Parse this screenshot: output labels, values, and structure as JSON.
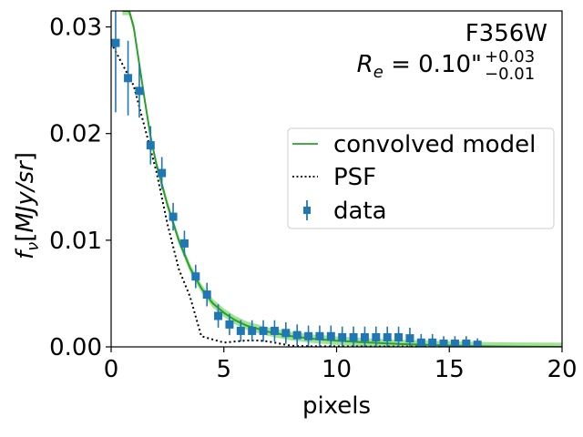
{
  "chart_data": {
    "type": "scatter",
    "xlabel": "pixels",
    "ylabel": "f_ν [MJy/sr]",
    "xlim": [
      0,
      20
    ],
    "ylim": [
      0,
      0.0315
    ],
    "x_ticks": [
      0,
      5,
      10,
      15,
      20
    ],
    "y_ticks": [
      0.0,
      0.01,
      0.02,
      0.03
    ],
    "x_tick_labels": [
      "0",
      "5",
      "10",
      "15",
      "20"
    ],
    "y_tick_labels": [
      "0.00",
      "0.01",
      "0.02",
      "0.03"
    ],
    "annotation": {
      "filter": "F356W",
      "re_label": "R_e = 0.10\"",
      "re_plus": "+0.03",
      "re_minus": "−0.01"
    },
    "legend": {
      "placement": "center-right",
      "entries": [
        "convolved model",
        "PSF",
        "data"
      ]
    },
    "colors": {
      "model": "#2ca02c",
      "model_band": "#98df8a",
      "psf": "#000000",
      "data": "#1f77b4"
    },
    "series": [
      {
        "name": "data",
        "x": [
          0.2,
          0.75,
          1.25,
          1.75,
          2.25,
          2.75,
          3.25,
          3.75,
          4.25,
          4.75,
          5.25,
          5.75,
          6.25,
          6.75,
          7.25,
          7.75,
          8.25,
          8.75,
          9.25,
          9.75,
          10.25,
          10.75,
          11.25,
          11.75,
          12.25,
          12.75,
          13.25,
          13.75,
          14.25,
          14.75,
          15.25,
          15.75,
          16.25
        ],
        "y": [
          0.0285,
          0.0252,
          0.024,
          0.0189,
          0.0163,
          0.0122,
          0.0097,
          0.0066,
          0.0049,
          0.0029,
          0.0021,
          0.0015,
          0.0015,
          0.0015,
          0.0015,
          0.0013,
          0.0011,
          0.001,
          0.001,
          0.001,
          0.0009,
          0.0009,
          0.0009,
          0.0009,
          0.0009,
          0.0009,
          0.0008,
          0.0004,
          0.0004,
          0.0003,
          0.0003,
          0.0003,
          0.0002
        ],
        "yerr": [
          0.0065,
          0.0035,
          0.0025,
          0.0018,
          0.0015,
          0.0013,
          0.0012,
          0.0011,
          0.0011,
          0.0011,
          0.001,
          0.001,
          0.001,
          0.001,
          0.001,
          0.001,
          0.001,
          0.001,
          0.001,
          0.001,
          0.001,
          0.001,
          0.001,
          0.001,
          0.001,
          0.001,
          0.001,
          0.0008,
          0.0008,
          0.0007,
          0.0007,
          0.0007,
          0.0006
        ]
      },
      {
        "name": "convolved model",
        "x": [
          0.5,
          0.8,
          1.0,
          1.25,
          1.5,
          1.75,
          2.0,
          2.5,
          3.0,
          3.5,
          4.0,
          4.5,
          5.0,
          5.5,
          6.0,
          7.0,
          8.0,
          9.0,
          10.0,
          11.0,
          12.0,
          13.0,
          14.0,
          15.0,
          16.0,
          17.0,
          18.0,
          20.0
        ],
        "y": [
          0.0315,
          0.0315,
          0.03,
          0.0265,
          0.023,
          0.0197,
          0.0172,
          0.0133,
          0.01,
          0.0074,
          0.0055,
          0.0041,
          0.0032,
          0.0025,
          0.002,
          0.0014,
          0.001,
          0.00075,
          0.00058,
          0.00045,
          0.00035,
          0.00026,
          0.00019,
          0.00013,
          8e-05,
          4e-05,
          2e-05,
          0.0
        ],
        "band": 0.0004
      },
      {
        "name": "PSF",
        "x": [
          0.0,
          0.5,
          1.0,
          1.5,
          2.0,
          2.5,
          3.0,
          3.5,
          4.0,
          4.5,
          5.0,
          5.5,
          6.0,
          6.5,
          7.0,
          7.5,
          8.0,
          9.0,
          10.0,
          11.0,
          12.0,
          13.0,
          14.0,
          15.0,
          16.0,
          17.0,
          18.0,
          20.0
        ],
        "y": [
          0.0285,
          0.0265,
          0.0245,
          0.0205,
          0.0165,
          0.0115,
          0.0073,
          0.0047,
          0.001,
          0.0007,
          0.0004,
          0.0005,
          0.0006,
          0.0006,
          0.0005,
          0.0003,
          0.0001,
          5e-05,
          5e-05,
          4e-05,
          3e-05,
          3e-05,
          2e-05,
          2e-05,
          1e-05,
          0.0,
          0.0,
          0.0
        ]
      }
    ]
  }
}
